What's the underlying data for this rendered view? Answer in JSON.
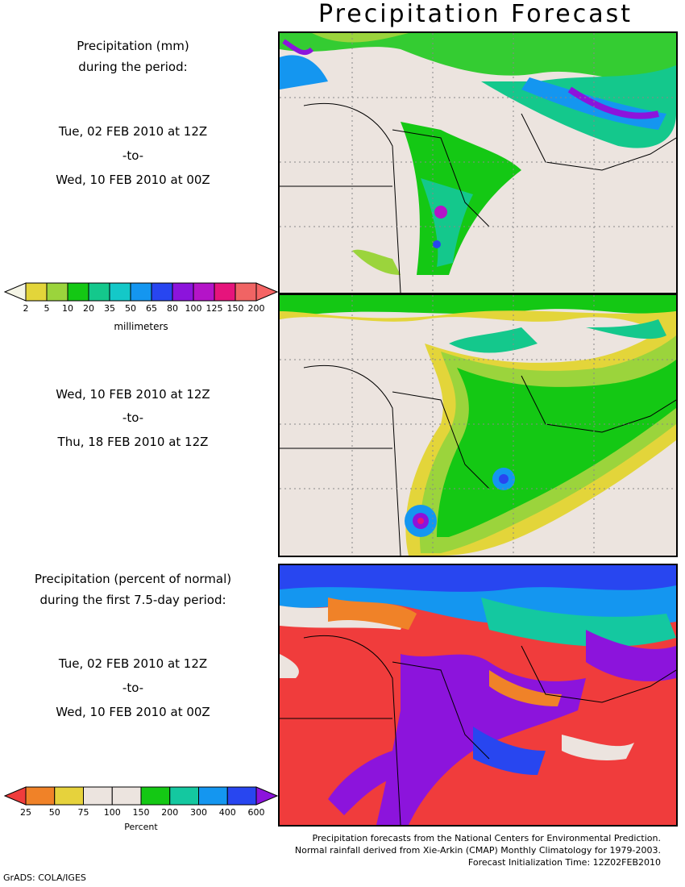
{
  "title": "Precipitation Forecast",
  "panel1": {
    "heading_line1": "Precipitation (mm)",
    "heading_line2": "during the period:",
    "start": "Tue, 02 FEB 2010 at 12Z",
    "sep": "-to-",
    "end": "Wed, 10 FEB 2010 at 00Z"
  },
  "panel2": {
    "start": "Wed, 10 FEB 2010 at 12Z",
    "sep": "-to-",
    "end": "Thu, 18 FEB 2010 at 12Z"
  },
  "panel3": {
    "heading_line1": "Precipitation (percent of normal)",
    "heading_line2": "during the first 7.5-day period:",
    "start": "Tue, 02 FEB 2010 at 12Z",
    "sep": "-to-",
    "end": "Wed, 10 FEB 2010 at 00Z"
  },
  "mm_colorbar": {
    "unit_label": "millimeters",
    "ticks": [
      "2",
      "5",
      "10",
      "20",
      "35",
      "50",
      "65",
      "80",
      "100",
      "125",
      "150",
      "200"
    ],
    "colors": [
      "#f5f5e6",
      "#e3d53a",
      "#9bd43c",
      "#14c814",
      "#14c88c",
      "#14c8c8",
      "#1496f0",
      "#2846f0",
      "#8c14dc",
      "#b414c8",
      "#e6147c",
      "#f06464",
      "#f56464"
    ]
  },
  "pct_colorbar": {
    "unit_label": "Percent",
    "ticks": [
      "25",
      "50",
      "75",
      "100",
      "150",
      "200",
      "300",
      "400",
      "600"
    ],
    "colors": [
      "#f03c3c",
      "#f08228",
      "#e6d23c",
      "#ece4df",
      "#ece4df",
      "#14c814",
      "#14c8a0",
      "#1496f0",
      "#2846f0",
      "#8c14dc"
    ]
  },
  "footer": {
    "line1": "Precipitation forecasts from the National Centers for Environmental Prediction.",
    "line2": "Normal rainfall derived from Xie-Arkin (CMAP) Monthly Climatology for 1979-2003.",
    "line3": "Forecast Initialization Time: 12Z02FEB2010"
  },
  "credit": "GrADS: COLA/IGES"
}
